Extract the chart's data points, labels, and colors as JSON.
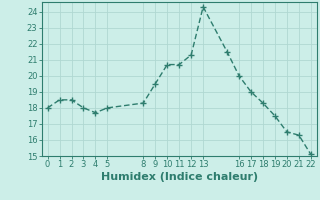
{
  "x": [
    0,
    1,
    2,
    3,
    4,
    5,
    8,
    9,
    10,
    11,
    12,
    13,
    15,
    16,
    17,
    18,
    19,
    20,
    21,
    22
  ],
  "y": [
    18.0,
    18.5,
    18.5,
    18.0,
    17.7,
    18.0,
    18.3,
    19.5,
    20.7,
    20.7,
    21.3,
    24.3,
    21.5,
    20.0,
    19.0,
    18.3,
    17.5,
    16.5,
    16.3,
    15.1
  ],
  "line_color": "#2e7d6e",
  "marker": "+",
  "marker_size": 4,
  "marker_lw": 1.0,
  "bg_color": "#cceee8",
  "grid_color": "#b0d8d2",
  "xlabel": "Humidex (Indice chaleur)",
  "xlim": [
    -0.5,
    22.5
  ],
  "ylim": [
    15,
    24.6
  ],
  "yticks": [
    15,
    16,
    17,
    18,
    19,
    20,
    21,
    22,
    23,
    24
  ],
  "xticks": [
    0,
    1,
    2,
    3,
    4,
    5,
    8,
    9,
    10,
    11,
    12,
    13,
    16,
    17,
    18,
    19,
    20,
    21,
    22
  ],
  "axis_color": "#2e7d6e",
  "tick_label_color": "#2e7d6e",
  "xlabel_color": "#2e7d6e",
  "xlabel_fontsize": 8,
  "tick_fontsize": 6,
  "linewidth": 1.0
}
